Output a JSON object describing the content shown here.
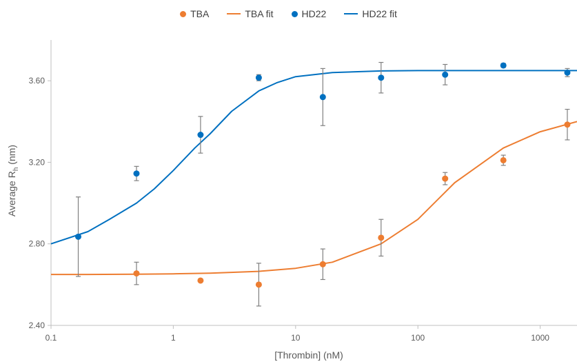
{
  "chart_data": {
    "type": "scatter",
    "xscale": "log",
    "xlim": [
      0.1,
      2000
    ],
    "ylim": [
      2.4,
      3.8
    ],
    "xticks": [
      0.1,
      1,
      10,
      100,
      1000
    ],
    "xtick_labels": [
      "0.1",
      "1",
      "10",
      "100",
      "1000"
    ],
    "yticks": [
      2.4,
      2.8,
      3.2,
      3.6
    ],
    "ytick_labels": [
      "2.40",
      "2.80",
      "3.20",
      "3.60"
    ],
    "xlabel": "[Thrombin] (nM)",
    "ylabel_main": "Average R",
    "ylabel_sub": "h",
    "ylabel_unit": " (nm)",
    "grid": false,
    "legend_position": "top-center",
    "series": [
      {
        "name": "TBA",
        "kind": "points",
        "color": "#ED7D31",
        "x": [
          0.5,
          1.67,
          5,
          16.7,
          50,
          167,
          500,
          1667
        ],
        "y": [
          2.655,
          2.62,
          2.6,
          2.7,
          2.83,
          3.12,
          3.21,
          3.385
        ],
        "err": [
          0.055,
          0,
          0.105,
          0.075,
          0.09,
          0.03,
          0.025,
          0.075
        ]
      },
      {
        "name": "TBA fit",
        "kind": "line",
        "color": "#ED7D31",
        "x": [
          0.1,
          0.2,
          0.5,
          1,
          2,
          5,
          10,
          20,
          50,
          100,
          200,
          500,
          1000,
          2000
        ],
        "y": [
          2.65,
          2.65,
          2.651,
          2.653,
          2.656,
          2.665,
          2.68,
          2.71,
          2.8,
          2.92,
          3.1,
          3.27,
          3.35,
          3.4
        ]
      },
      {
        "name": "HD22",
        "kind": "points",
        "color": "#0070C0",
        "x": [
          0.167,
          0.5,
          1.67,
          5,
          16.7,
          50,
          167,
          500,
          1667
        ],
        "y": [
          2.835,
          3.145,
          3.335,
          3.615,
          3.52,
          3.615,
          3.63,
          3.675,
          3.64
        ],
        "err": [
          0.195,
          0.035,
          0.09,
          0.015,
          0.14,
          0.075,
          0.05,
          0.01,
          0.02
        ]
      },
      {
        "name": "HD22 fit",
        "kind": "line",
        "color": "#0070C0",
        "x": [
          0.1,
          0.2,
          0.3,
          0.5,
          0.7,
          1,
          1.5,
          2,
          3,
          5,
          7,
          10,
          20,
          50,
          100,
          300,
          1000,
          2000
        ],
        "y": [
          2.8,
          2.86,
          2.92,
          3.0,
          3.07,
          3.16,
          3.27,
          3.34,
          3.45,
          3.55,
          3.59,
          3.62,
          3.64,
          3.648,
          3.65,
          3.65,
          3.65,
          3.65
        ]
      }
    ]
  },
  "legend": {
    "items": [
      {
        "label": "TBA",
        "type": "dot",
        "color": "#ED7D31"
      },
      {
        "label": "TBA fit",
        "type": "line",
        "color": "#ED7D31"
      },
      {
        "label": "HD22",
        "type": "dot",
        "color": "#0070C0"
      },
      {
        "label": "HD22 fit",
        "type": "line",
        "color": "#0070C0"
      }
    ]
  }
}
